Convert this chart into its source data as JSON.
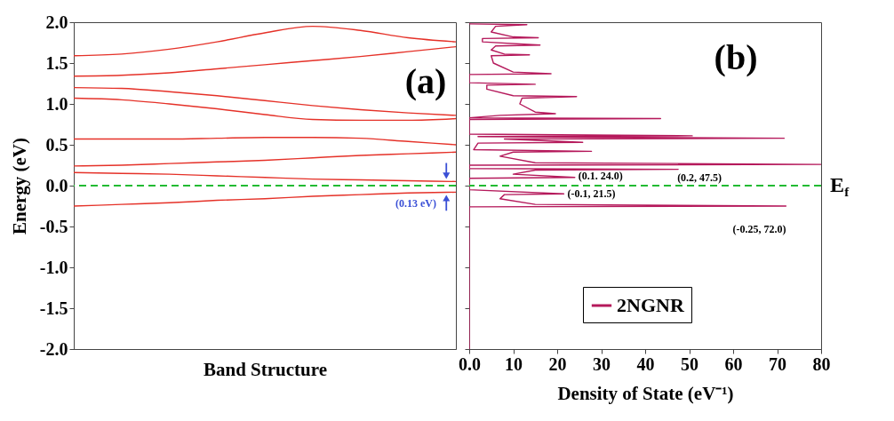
{
  "chart_data": [
    {
      "type": "line",
      "xlabel": "Band Structure",
      "ylabel": "Energy (eV)",
      "categories": [
        null,
        null,
        null,
        null,
        null,
        null,
        null,
        null,
        null
      ],
      "series": [
        {
          "color": "#e53128",
          "values": [
            1.59,
            1.61,
            1.67,
            1.76,
            1.87,
            1.95,
            1.9,
            1.81,
            1.76
          ]
        },
        {
          "color": "#e53128",
          "values": [
            1.34,
            1.35,
            1.38,
            1.43,
            1.48,
            1.53,
            1.58,
            1.64,
            1.7
          ]
        },
        {
          "color": "#e53128",
          "values": [
            1.2,
            1.19,
            1.15,
            1.1,
            1.04,
            0.98,
            0.93,
            0.89,
            0.86
          ]
        },
        {
          "color": "#e53128",
          "values": [
            1.07,
            1.05,
            1.0,
            0.94,
            0.87,
            0.81,
            0.8,
            0.8,
            0.82
          ]
        },
        {
          "color": "#e53128",
          "values": [
            0.57,
            0.57,
            0.57,
            0.58,
            0.59,
            0.59,
            0.58,
            0.54,
            0.5
          ]
        },
        {
          "color": "#e53128",
          "values": [
            0.24,
            0.25,
            0.27,
            0.29,
            0.31,
            0.34,
            0.37,
            0.39,
            0.41
          ]
        },
        {
          "color": "#e53128",
          "values": [
            0.16,
            0.15,
            0.14,
            0.12,
            0.1,
            0.08,
            0.07,
            0.06,
            0.05
          ]
        },
        {
          "color": "#e53128",
          "values": [
            -0.25,
            -0.23,
            -0.21,
            -0.18,
            -0.16,
            -0.13,
            -0.11,
            -0.09,
            -0.08
          ]
        }
      ],
      "ylim": [
        -2,
        2
      ],
      "yticks": [
        {
          "value": -2,
          "label": "-2.0"
        },
        {
          "value": -1.5,
          "label": "-1.5"
        },
        {
          "value": -1,
          "label": "-1.0"
        },
        {
          "value": -0.5,
          "label": "-0.5"
        },
        {
          "value": 0,
          "label": "0.0"
        },
        {
          "value": 0.5,
          "label": "0.5"
        },
        {
          "value": 1,
          "label": "1.0"
        },
        {
          "value": 1.5,
          "label": "1.5"
        },
        {
          "value": 2,
          "label": "2.0"
        }
      ],
      "tick_labels": "y",
      "ref_lines": [
        {
          "axis": "y",
          "value": 0,
          "color": "#22bb33",
          "line_style": "dashed"
        }
      ],
      "annotations": [
        "(a)",
        "(0.13 eV)"
      ]
    },
    {
      "type": "line",
      "xlabel": "Density of State (eV⁻¹)",
      "series": [
        {
          "name": "2NGNR",
          "color": "#b5195b",
          "x": [
            0,
            13.1,
            6,
            5,
            10,
            15.7,
            3,
            3,
            16.1,
            6,
            5,
            8,
            13.7,
            5,
            5.5,
            10,
            18.6,
            0,
            0,
            15,
            4,
            4,
            10,
            24.4,
            12,
            11.5,
            15,
            19.6,
            7,
            0,
            43.5,
            0,
            0,
            50.7,
            2,
            71.6,
            8,
            25.8,
            2,
            1,
            27.8,
            10,
            7,
            15,
            80,
            0,
            0,
            47.5,
            15,
            10,
            24,
            0,
            0,
            21.5,
            8,
            7,
            15,
            72,
            0,
            0
          ],
          "values": [
            1.98,
            1.97,
            1.95,
            1.88,
            1.82,
            1.81,
            1.8,
            1.76,
            1.72,
            1.71,
            1.66,
            1.61,
            1.6,
            1.59,
            1.5,
            1.39,
            1.37,
            1.36,
            1.26,
            1.24,
            1.23,
            1.18,
            1.1,
            1.09,
            1.07,
            1.0,
            0.9,
            0.88,
            0.86,
            0.83,
            0.82,
            0.81,
            0.63,
            0.61,
            0.6,
            0.58,
            0.57,
            0.53,
            0.52,
            0.44,
            0.42,
            0.41,
            0.36,
            0.28,
            0.26,
            0.25,
            0.21,
            0.2,
            0.19,
            0.14,
            0.1,
            0.09,
            -0.05,
            -0.1,
            -0.11,
            -0.16,
            -0.23,
            -0.25,
            -0.26,
            -2.0
          ]
        }
      ],
      "xlim": [
        0,
        80
      ],
      "xticks": [
        {
          "value": 0,
          "label": "0.0"
        },
        10,
        20,
        30,
        40,
        50,
        60,
        70,
        80
      ],
      "ylim": [
        -2,
        2
      ],
      "yticks": [
        {
          "value": -2,
          "label": null
        },
        {
          "value": -1.5,
          "label": null
        },
        {
          "value": -1,
          "label": null
        },
        {
          "value": -0.5,
          "label": null
        },
        {
          "value": 0,
          "label": null
        },
        {
          "value": 0.5,
          "label": null
        },
        {
          "value": 1,
          "label": null
        },
        {
          "value": 1.5,
          "label": null
        },
        {
          "value": 2,
          "label": null
        }
      ],
      "tick_labels": "x",
      "legend": "bottom",
      "ref_lines": [
        {
          "axis": "y",
          "value": 0,
          "color": "#22bb33",
          "line_style": "dashed",
          "label": "E$_{f}$"
        }
      ],
      "annotations": [
        "(b)",
        {
          "text": "(0.1. 24.0)",
          "x": 24,
          "y": 0.1
        },
        {
          "text": "(0.2, 47.5)",
          "x": 47.5,
          "y": 0.2
        },
        {
          "text": "(-0.1, 21.5)",
          "x": 21.5,
          "y": -0.1
        },
        {
          "text": "(-0.25, 72.0)",
          "x": 72,
          "y": -0.25
        }
      ]
    }
  ]
}
